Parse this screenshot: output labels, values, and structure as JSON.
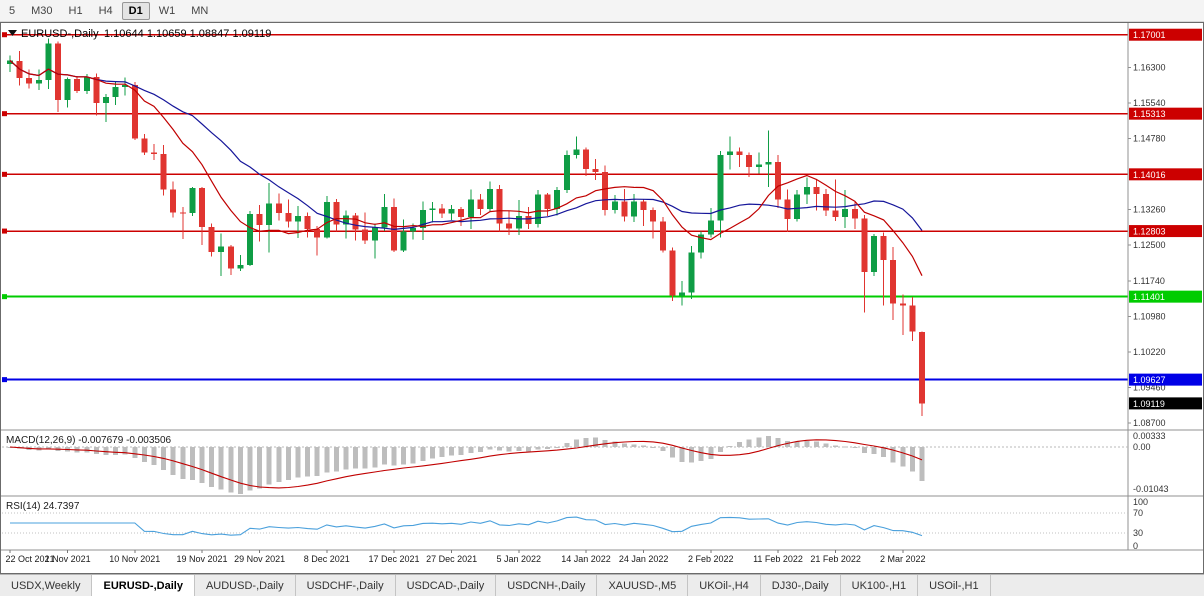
{
  "toolbar": {
    "timeframes": [
      "5",
      "M30",
      "H1",
      "H4",
      "D1",
      "W1",
      "MN"
    ],
    "active_timeframe": "D1"
  },
  "chart": {
    "title": {
      "symbol": "EURUSD-,Daily",
      "ohlc": "1.10644 1.10659 1.08847 1.09119",
      "open": "1.10644",
      "high": "1.10659",
      "low": "1.08847",
      "close": "1.09119"
    },
    "levels": [
      {
        "price": 1.17001,
        "label": "1.17001",
        "color": "#cc0000",
        "width": 1.4
      },
      {
        "price": 1.15313,
        "label": "1.15313",
        "color": "#cc0000",
        "width": 1.4
      },
      {
        "price": 1.14016,
        "label": "1.14016",
        "color": "#cc0000",
        "width": 1.4
      },
      {
        "price": 1.12803,
        "label": "1.12803",
        "color": "#cc0000",
        "width": 1.4
      },
      {
        "price": 1.11401,
        "label": "1.11401",
        "color": "#00cc00",
        "width": 2
      },
      {
        "price": 1.09627,
        "label": "1.09627",
        "color": "#0000e6",
        "width": 2
      }
    ],
    "current_price": {
      "price": 1.09119,
      "label": "1.09119",
      "color": "#000000"
    },
    "y_axis_labels": [
      "1.16300",
      "1.15540",
      "1.14780",
      "1.13260",
      "1.12500",
      "1.11740",
      "1.10980",
      "1.10220",
      "1.09460",
      "1.08700"
    ],
    "x_axis_labels": [
      {
        "index": 0,
        "text": "22 Oct 2021"
      },
      {
        "index": 6,
        "text": "1 Nov 2021"
      },
      {
        "index": 13,
        "text": "10 Nov 2021"
      },
      {
        "index": 20,
        "text": "19 Nov 2021"
      },
      {
        "index": 26,
        "text": "29 Nov 2021"
      },
      {
        "index": 33,
        "text": "8 Dec 2021"
      },
      {
        "index": 40,
        "text": "17 Dec 2021"
      },
      {
        "index": 46,
        "text": "27 Dec 2021"
      },
      {
        "index": 53,
        "text": "5 Jan 2022"
      },
      {
        "index": 60,
        "text": "14 Jan 2022"
      },
      {
        "index": 66,
        "text": "24 Jan 2022"
      },
      {
        "index": 73,
        "text": "2 Feb 2022"
      },
      {
        "index": 80,
        "text": "11 Feb 2022"
      },
      {
        "index": 86,
        "text": "21 Feb 2022"
      },
      {
        "index": 93,
        "text": "2 Mar 2022"
      }
    ]
  },
  "macd": {
    "label": "MACD(12,26,9) -0.007679 -0.003506",
    "value": -0.007679,
    "signal": -0.003506,
    "axis": [
      "0.00333",
      "0.00",
      "-0.01043"
    ]
  },
  "rsi": {
    "label": "RSI(14) 24.7397",
    "value": 24.7397,
    "axis": [
      "100",
      "70",
      "30",
      "0"
    ]
  },
  "tabs": {
    "active_index": 1,
    "items": [
      "USDX,Weekly",
      "EURUSD-,Daily",
      "AUDUSD-,Daily",
      "USDCHF-,Daily",
      "USDCAD-,Daily",
      "USDCNH-,Daily",
      "XAUUSD-,M5",
      "UKOil-,H4",
      "DJ30-,Daily",
      "UK100-,H1",
      "USOil-,H1"
    ]
  },
  "colors": {
    "bull": "#0f9d45",
    "bear": "#e03530",
    "ma_fast": "#c00000",
    "ma_slow": "#16169a",
    "macd_bar": "#bdbdbd",
    "macd_signal": "#c00000",
    "rsi_line": "#4aa0dc",
    "axis_text": "#333333"
  },
  "chart_data": {
    "type": "candlestick",
    "symbol": "EURUSD",
    "timeframe": "Daily",
    "price_range": [
      1.0855,
      1.1723
    ],
    "candles": [
      [
        1.1637,
        1.1656,
        1.162,
        1.1645
      ],
      [
        1.1644,
        1.1665,
        1.1591,
        1.1608
      ],
      [
        1.1608,
        1.1626,
        1.1585,
        1.1596
      ],
      [
        1.1596,
        1.1626,
        1.1582,
        1.1603
      ],
      [
        1.1603,
        1.1692,
        1.1584,
        1.1681
      ],
      [
        1.1681,
        1.1686,
        1.1535,
        1.1561
      ],
      [
        1.1561,
        1.1609,
        1.1545,
        1.1605
      ],
      [
        1.1605,
        1.1612,
        1.1575,
        1.158
      ],
      [
        1.158,
        1.1616,
        1.1573,
        1.161
      ],
      [
        1.161,
        1.1617,
        1.1527,
        1.1554
      ],
      [
        1.1554,
        1.1573,
        1.1513,
        1.1567
      ],
      [
        1.1567,
        1.1599,
        1.155,
        1.1588
      ],
      [
        1.1588,
        1.1609,
        1.157,
        1.1593
      ],
      [
        1.1593,
        1.1599,
        1.1475,
        1.1478
      ],
      [
        1.1478,
        1.1488,
        1.1443,
        1.1448
      ],
      [
        1.1448,
        1.1466,
        1.1432,
        1.1445
      ],
      [
        1.1445,
        1.1464,
        1.1356,
        1.1369
      ],
      [
        1.1369,
        1.1386,
        1.1309,
        1.132
      ],
      [
        1.132,
        1.1332,
        1.1263,
        1.1319
      ],
      [
        1.1319,
        1.1374,
        1.1313,
        1.1372
      ],
      [
        1.1372,
        1.1374,
        1.125,
        1.1289
      ],
      [
        1.1289,
        1.1296,
        1.1226,
        1.1236
      ],
      [
        1.1236,
        1.1275,
        1.1184,
        1.1247
      ],
      [
        1.1247,
        1.125,
        1.1186,
        1.12
      ],
      [
        1.12,
        1.1229,
        1.1195,
        1.1208
      ],
      [
        1.1208,
        1.1323,
        1.1206,
        1.1317
      ],
      [
        1.1317,
        1.1336,
        1.1258,
        1.1293
      ],
      [
        1.1293,
        1.1383,
        1.1235,
        1.1339
      ],
      [
        1.1339,
        1.1361,
        1.1303,
        1.1319
      ],
      [
        1.1319,
        1.1348,
        1.1288,
        1.1301
      ],
      [
        1.1301,
        1.1334,
        1.1266,
        1.1313
      ],
      [
        1.1313,
        1.132,
        1.1267,
        1.1285
      ],
      [
        1.1285,
        1.1291,
        1.1228,
        1.1267
      ],
      [
        1.1267,
        1.1355,
        1.1264,
        1.1342
      ],
      [
        1.1342,
        1.1349,
        1.1279,
        1.1294
      ],
      [
        1.1294,
        1.1324,
        1.1264,
        1.1314
      ],
      [
        1.1314,
        1.1319,
        1.126,
        1.1284
      ],
      [
        1.1284,
        1.132,
        1.1253,
        1.126
      ],
      [
        1.126,
        1.1296,
        1.1222,
        1.1288
      ],
      [
        1.1288,
        1.136,
        1.128,
        1.1332
      ],
      [
        1.1332,
        1.135,
        1.1236,
        1.1239
      ],
      [
        1.1239,
        1.1305,
        1.1236,
        1.1279
      ],
      [
        1.1279,
        1.1296,
        1.1262,
        1.1287
      ],
      [
        1.1287,
        1.1343,
        1.1261,
        1.1325
      ],
      [
        1.1325,
        1.1342,
        1.1299,
        1.1329
      ],
      [
        1.1329,
        1.1338,
        1.1308,
        1.1318
      ],
      [
        1.1318,
        1.1336,
        1.1304,
        1.1327
      ],
      [
        1.1327,
        1.1332,
        1.1291,
        1.131
      ],
      [
        1.131,
        1.1369,
        1.1285,
        1.1348
      ],
      [
        1.1348,
        1.136,
        1.1315,
        1.1327
      ],
      [
        1.1327,
        1.1386,
        1.1321,
        1.137
      ],
      [
        1.137,
        1.1379,
        1.1279,
        1.1297
      ],
      [
        1.1297,
        1.1323,
        1.1272,
        1.1286
      ],
      [
        1.1286,
        1.1347,
        1.1272,
        1.1313
      ],
      [
        1.1313,
        1.1332,
        1.1285,
        1.1295
      ],
      [
        1.1295,
        1.1368,
        1.1288,
        1.1359
      ],
      [
        1.1359,
        1.1362,
        1.1313,
        1.1327
      ],
      [
        1.1327,
        1.1374,
        1.1314,
        1.1368
      ],
      [
        1.1368,
        1.1453,
        1.1362,
        1.1443
      ],
      [
        1.1443,
        1.1482,
        1.1435,
        1.1455
      ],
      [
        1.1455,
        1.1459,
        1.1398,
        1.1413
      ],
      [
        1.1413,
        1.1434,
        1.139,
        1.1407
      ],
      [
        1.1407,
        1.1421,
        1.1314,
        1.1325
      ],
      [
        1.1325,
        1.1357,
        1.1318,
        1.1344
      ],
      [
        1.1344,
        1.137,
        1.1301,
        1.1311
      ],
      [
        1.1311,
        1.136,
        1.13,
        1.1343
      ],
      [
        1.1343,
        1.1349,
        1.1291,
        1.1325
      ],
      [
        1.1325,
        1.1331,
        1.1264,
        1.1301
      ],
      [
        1.1301,
        1.131,
        1.1234,
        1.1239
      ],
      [
        1.1239,
        1.1245,
        1.1131,
        1.1143
      ],
      [
        1.1143,
        1.1174,
        1.1121,
        1.1149
      ],
      [
        1.1149,
        1.1248,
        1.1135,
        1.1234
      ],
      [
        1.1234,
        1.1279,
        1.1222,
        1.1273
      ],
      [
        1.1273,
        1.133,
        1.1267,
        1.1303
      ],
      [
        1.1303,
        1.1452,
        1.1267,
        1.1443
      ],
      [
        1.1443,
        1.1483,
        1.1412,
        1.145
      ],
      [
        1.145,
        1.1459,
        1.1417,
        1.1443
      ],
      [
        1.1443,
        1.1448,
        1.1396,
        1.1417
      ],
      [
        1.1417,
        1.1448,
        1.1403,
        1.1423
      ],
      [
        1.1423,
        1.1495,
        1.1375,
        1.1428
      ],
      [
        1.1428,
        1.1443,
        1.133,
        1.1348
      ],
      [
        1.1348,
        1.1369,
        1.1278,
        1.1306
      ],
      [
        1.1306,
        1.1368,
        1.1301,
        1.1358
      ],
      [
        1.1358,
        1.1395,
        1.1338,
        1.1374
      ],
      [
        1.1374,
        1.1389,
        1.1324,
        1.136
      ],
      [
        1.136,
        1.137,
        1.1312,
        1.1324
      ],
      [
        1.1324,
        1.1391,
        1.1302,
        1.131
      ],
      [
        1.131,
        1.1368,
        1.1287,
        1.1327
      ],
      [
        1.1327,
        1.1342,
        1.1285,
        1.1307
      ],
      [
        1.1307,
        1.1315,
        1.1106,
        1.1193
      ],
      [
        1.1193,
        1.1274,
        1.1184,
        1.127
      ],
      [
        1.127,
        1.1277,
        1.1121,
        1.1218
      ],
      [
        1.1218,
        1.1246,
        1.109,
        1.1125
      ],
      [
        1.1125,
        1.1145,
        1.1058,
        1.1121
      ],
      [
        1.1121,
        1.1139,
        1.1045,
        1.1066
      ],
      [
        1.10644,
        1.10659,
        1.08847,
        1.09119
      ]
    ],
    "indicators": [
      {
        "name": "SMA",
        "period": 20,
        "color": "#16169a"
      },
      {
        "name": "SMA",
        "period": 10,
        "color": "#c00000"
      },
      {
        "name": "MACD",
        "params": [
          12,
          26,
          9
        ],
        "last_values": [
          -0.007679,
          -0.003506
        ],
        "axis_range": [
          -0.01043,
          0.00333
        ]
      },
      {
        "name": "RSI",
        "params": [
          14
        ],
        "last_value": 24.7397,
        "axis_range": [
          0,
          100
        ],
        "levels": [
          30,
          70
        ]
      }
    ]
  }
}
